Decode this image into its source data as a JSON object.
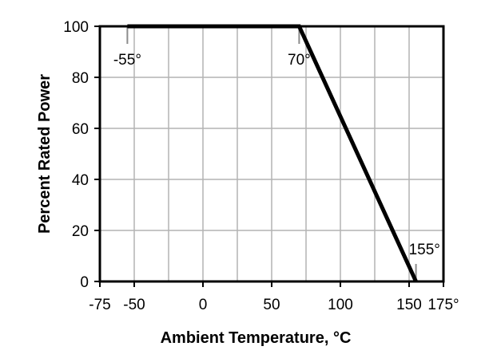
{
  "chart_data": {
    "type": "line",
    "title": "",
    "xlabel": "Ambient Temperature, °C",
    "ylabel": "Percent Rated Power",
    "xlim": [
      -75,
      175
    ],
    "ylim": [
      0,
      100
    ],
    "x_ticks": [
      -75,
      -50,
      0,
      50,
      100,
      150,
      175
    ],
    "x_tick_labels": [
      "-75",
      "-50",
      "0",
      "50",
      "100",
      "150",
      "175°"
    ],
    "y_ticks": [
      0,
      20,
      40,
      60,
      80,
      100
    ],
    "y_tick_labels": [
      "0",
      "20",
      "40",
      "60",
      "80",
      "100"
    ],
    "x_grid": [
      -50,
      -25,
      0,
      25,
      50,
      75,
      100,
      125,
      150
    ],
    "y_grid": [
      20,
      40,
      60,
      80
    ],
    "grid": true,
    "legend": "none",
    "series": [
      {
        "x": [
          -55,
          70,
          155
        ],
        "y": [
          100,
          100,
          0
        ]
      }
    ],
    "annotations": [
      {
        "label": "-55°",
        "x": -55,
        "y": 100
      },
      {
        "label": "70°",
        "x": 70,
        "y": 100
      },
      {
        "label": "155°",
        "x": 155,
        "y": 0
      }
    ]
  }
}
